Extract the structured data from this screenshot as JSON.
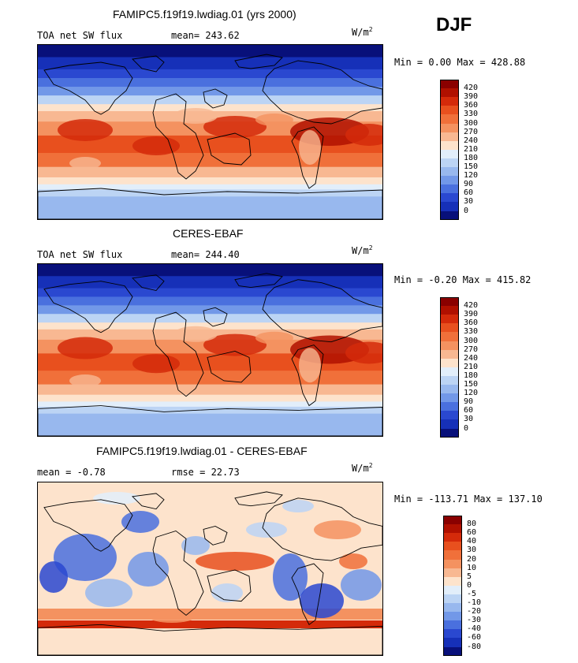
{
  "season": "DJF",
  "unit_base": "W/m",
  "unit_exp": "2",
  "panels": [
    {
      "title": "FAMIPC5.f19f19.lwdiag.01 (yrs 2000)",
      "left_label": "TOA net SW flux",
      "right_label": "mean= 243.62",
      "minmax": "Min =   0.00 Max = 428.88"
    },
    {
      "title": "CERES-EBAF",
      "left_label": "TOA net SW flux",
      "right_label": "mean= 244.40",
      "minmax": "Min =  -0.20 Max = 415.82"
    },
    {
      "title": "FAMIPC5.f19f19.lwdiag.01 - CERES-EBAF",
      "left_label": "mean =  -0.78",
      "right_label": "rmse =  22.73",
      "minmax": "Min = -113.71 Max = 137.10"
    }
  ],
  "chart_data": [
    {
      "type": "heatmap",
      "title": "FAMIPC5.f19f19.lwdiag.01 (yrs 2000)",
      "variable": "TOA net SW flux",
      "mean": 243.62,
      "min": 0.0,
      "max": 428.88,
      "colorbar_levels": [
        420,
        390,
        360,
        330,
        300,
        270,
        240,
        210,
        180,
        150,
        120,
        90,
        60,
        30,
        0
      ],
      "colorbar_colors": [
        "#8a0000",
        "#b01000",
        "#d42a0a",
        "#e8501e",
        "#f0703a",
        "#f49260",
        "#f8b892",
        "#fde3cc",
        "#e2eefa",
        "#bcd4f4",
        "#98b8ee",
        "#7298e8",
        "#4a70de",
        "#2a48d0",
        "#1630b8",
        "#08107a"
      ],
      "legend": "right"
    },
    {
      "type": "heatmap",
      "title": "CERES-EBAF",
      "variable": "TOA net SW flux",
      "mean": 244.4,
      "min": -0.2,
      "max": 415.82,
      "colorbar_levels": [
        420,
        390,
        360,
        330,
        300,
        270,
        240,
        210,
        180,
        150,
        120,
        90,
        60,
        30,
        0
      ],
      "colorbar_colors": [
        "#8a0000",
        "#b01000",
        "#d42a0a",
        "#e8501e",
        "#f0703a",
        "#f49260",
        "#f8b892",
        "#fde3cc",
        "#e2eefa",
        "#bcd4f4",
        "#98b8ee",
        "#7298e8",
        "#4a70de",
        "#2a48d0",
        "#1630b8",
        "#08107a"
      ],
      "legend": "right"
    },
    {
      "type": "heatmap",
      "title": "FAMIPC5.f19f19.lwdiag.01 - CERES-EBAF",
      "mean": -0.78,
      "rmse": 22.73,
      "min": -113.71,
      "max": 137.1,
      "colorbar_levels": [
        80,
        60,
        40,
        30,
        20,
        10,
        5,
        0,
        -5,
        -10,
        -20,
        -30,
        -40,
        -60,
        -80
      ],
      "colorbar_colors": [
        "#8a0000",
        "#b01000",
        "#d42a0a",
        "#e8501e",
        "#f0703a",
        "#f49260",
        "#f8b892",
        "#fde3cc",
        "#e2eefa",
        "#bcd4f4",
        "#98b8ee",
        "#7298e8",
        "#4a70de",
        "#2a48d0",
        "#1630b8",
        "#08107a"
      ],
      "legend": "right"
    }
  ]
}
